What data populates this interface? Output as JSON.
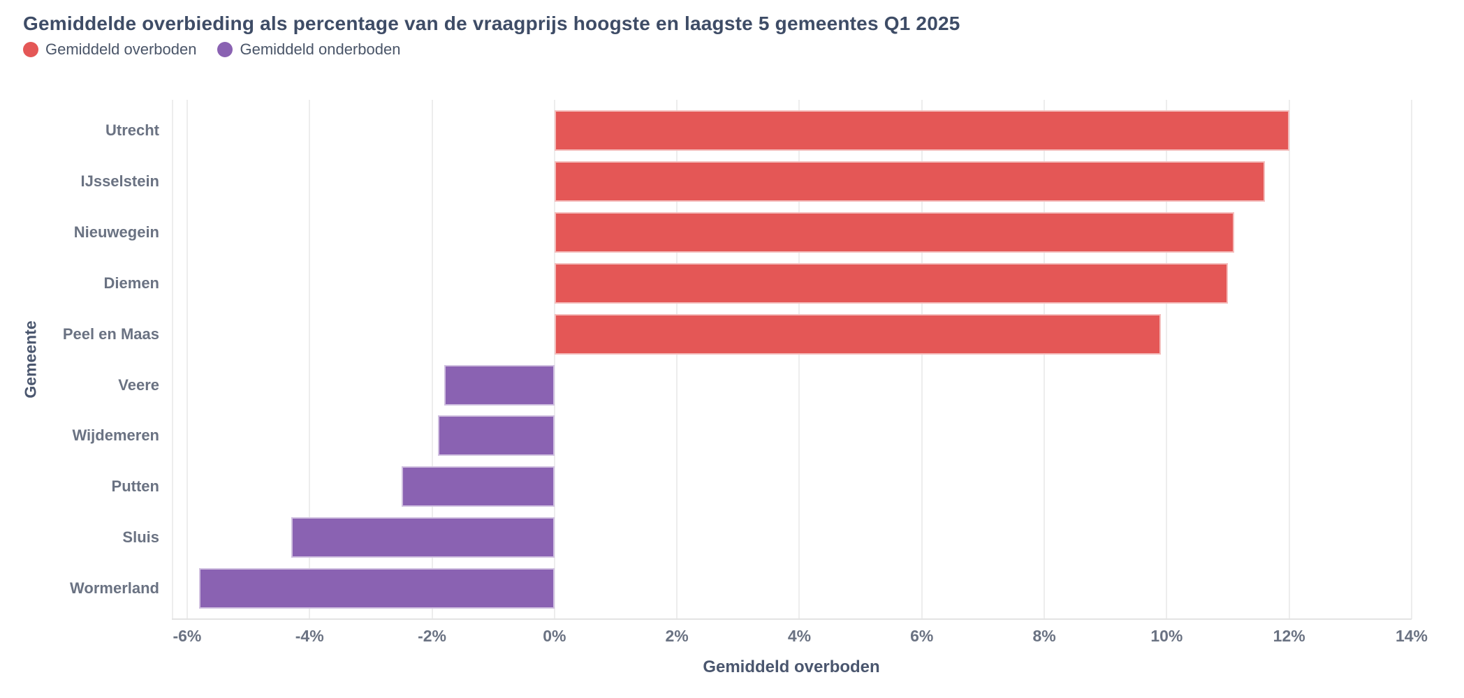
{
  "chart_data": {
    "type": "bar",
    "orientation": "horizontal",
    "title": "Gemiddelde overbieding als percentage van de vraagprijs hoogste en laagste 5 gemeentes Q1 2025",
    "categories": [
      "Utrecht",
      "IJsselstein",
      "Nieuwegein",
      "Diemen",
      "Peel en Maas",
      "Veere",
      "Wijdemeren",
      "Putten",
      "Sluis",
      "Wormerland"
    ],
    "values": [
      12.0,
      11.6,
      11.1,
      11.0,
      9.9,
      -1.8,
      -1.9,
      -2.5,
      -4.3,
      -5.8
    ],
    "series": [
      {
        "name": "Gemiddeld overboden",
        "color": "#e45756",
        "applies_to": "values >= 0"
      },
      {
        "name": "Gemiddeld onderboden",
        "color": "#8a62b2",
        "applies_to": "values < 0"
      }
    ],
    "xlabel": "Gemiddeld overboden",
    "ylabel": "Gemeente",
    "xlim": [
      -6.25,
      14
    ],
    "x_ticks": [
      -6,
      -4,
      -2,
      0,
      2,
      4,
      6,
      8,
      10,
      12,
      14
    ],
    "tick_suffix": "%",
    "grid": "vertical",
    "legend_position": "top-left",
    "background": "#ffffff"
  }
}
